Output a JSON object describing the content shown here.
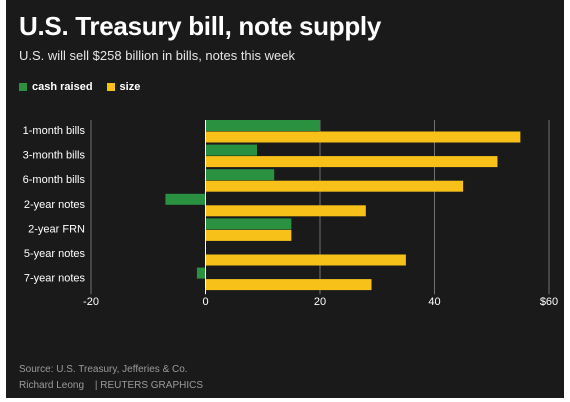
{
  "header": {
    "title": "U.S. Treasury bill, note supply",
    "subtitle": "U.S. will sell $258 billion in bills, notes this week"
  },
  "footer": {
    "source": "Source: U.S. Treasury, Jefferies & Co.",
    "author": "Richard Leong",
    "separator": "|",
    "agency": "REUTERS GRAPHICS"
  },
  "colors": {
    "background": "#1b1a1b",
    "cash_raised": "#2a9140",
    "size": "#f7c11a",
    "grid": "#8a8a8a"
  },
  "chart_data": {
    "type": "bar",
    "orientation": "horizontal",
    "title": "U.S. Treasury bill, note supply",
    "subtitle": "U.S. will sell $258 billion in bills, notes this week",
    "categories": [
      "1-month bills",
      "3-month bills",
      "6-month bills",
      "2-year notes",
      "2-year FRN",
      "5-year notes",
      "7-year notes"
    ],
    "series": [
      {
        "name": "cash raised",
        "color": "#2a9140",
        "values": [
          20,
          9,
          12,
          -7,
          15,
          0,
          -1.5
        ]
      },
      {
        "name": "size",
        "color": "#f7c11a",
        "values": [
          55,
          51,
          45,
          28,
          15,
          35,
          29
        ]
      }
    ],
    "xlim": [
      -20,
      60
    ],
    "xticks": [
      -20,
      0,
      20,
      40,
      60
    ],
    "xtick_labels": [
      "-20",
      "0",
      "20",
      "40",
      "$60"
    ],
    "xlabel": "",
    "ylabel": "",
    "grid": true,
    "legend": "top-left"
  }
}
